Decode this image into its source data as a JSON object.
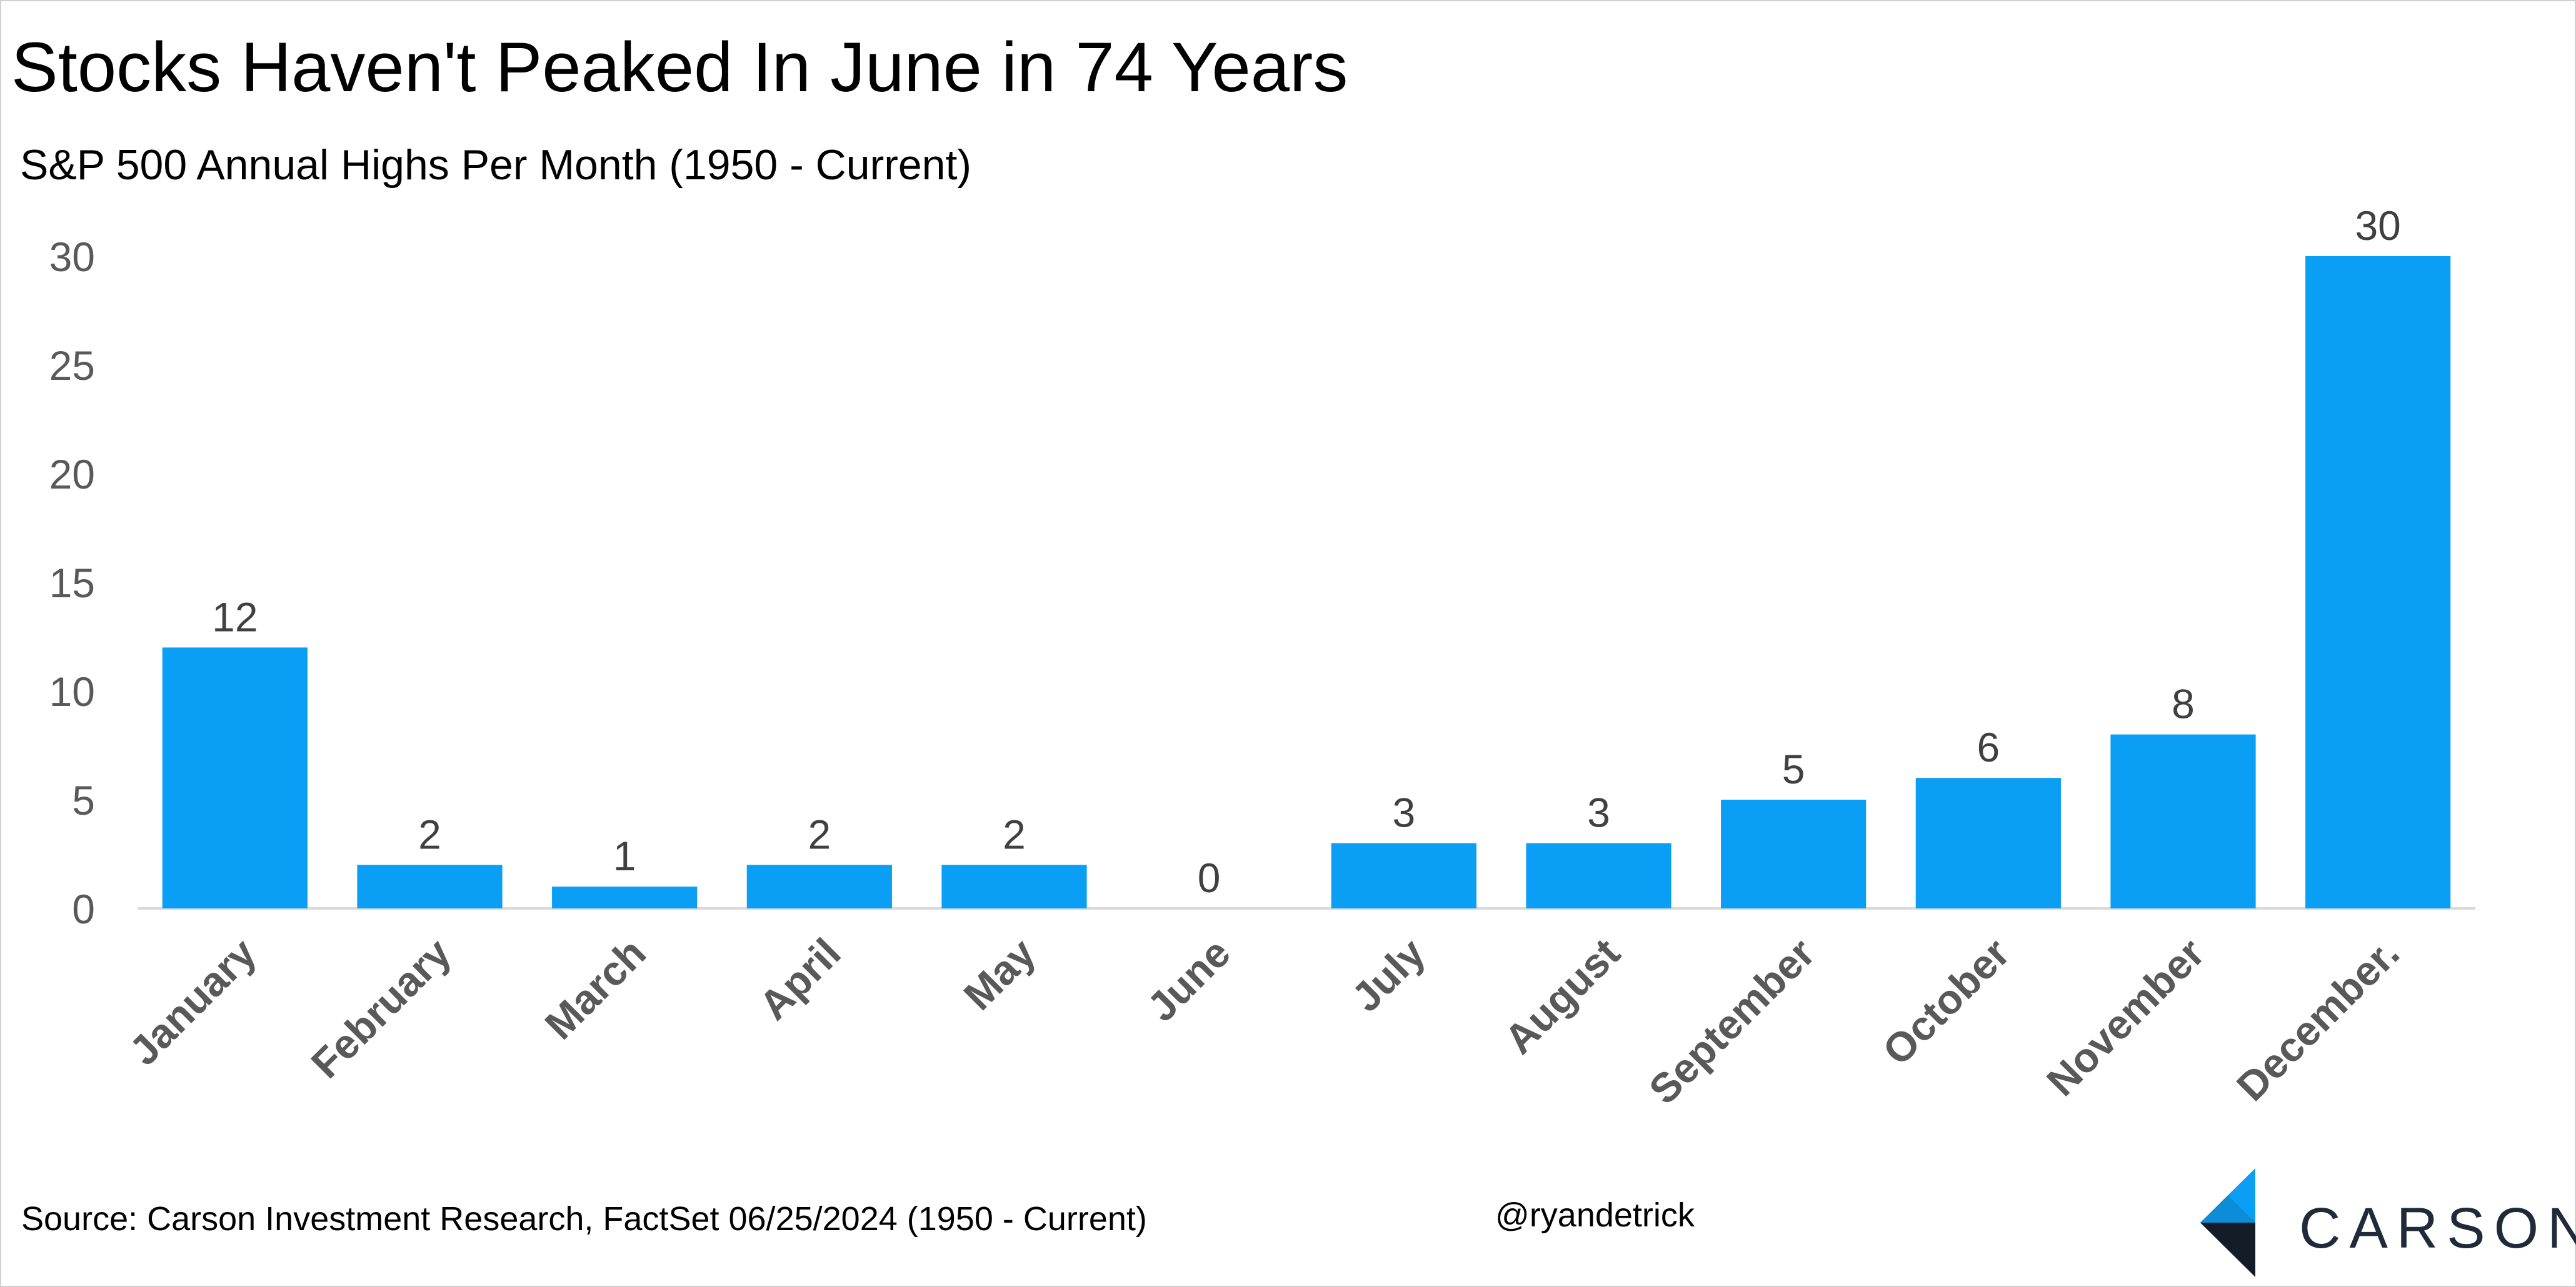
{
  "title": "Stocks Haven't Peaked In June in 74 Years",
  "subtitle": "S&P 500 Annual Highs Per Month (1950 - Current)",
  "source": "Source: Carson Investment Research, FactSet 06/25/2024 (1950 - Current)",
  "handle": "@ryandetrick",
  "logo_text": "CARSON",
  "colors": {
    "bar": "#0A9EF5",
    "axis_text": "#595959",
    "label_text": "#404040",
    "baseline": "#d9d9d9",
    "logo_dark": "#1f2a3a",
    "logo_blue": "#0A9EF5"
  },
  "chart_data": {
    "type": "bar",
    "title": "Stocks Haven't Peaked In June in 74 Years",
    "subtitle": "S&P 500 Annual Highs Per Month (1950 - Current)",
    "categories": [
      "January",
      "February",
      "March",
      "April",
      "May",
      "June",
      "July",
      "August",
      "September",
      "October",
      "November",
      "December."
    ],
    "values": [
      12,
      2,
      1,
      2,
      2,
      0,
      3,
      3,
      5,
      6,
      8,
      30
    ],
    "data_labels": true,
    "ylim": [
      0,
      30
    ],
    "yticks": [
      0,
      5,
      10,
      15,
      20,
      25,
      30
    ],
    "grid": false,
    "legend": "none"
  }
}
